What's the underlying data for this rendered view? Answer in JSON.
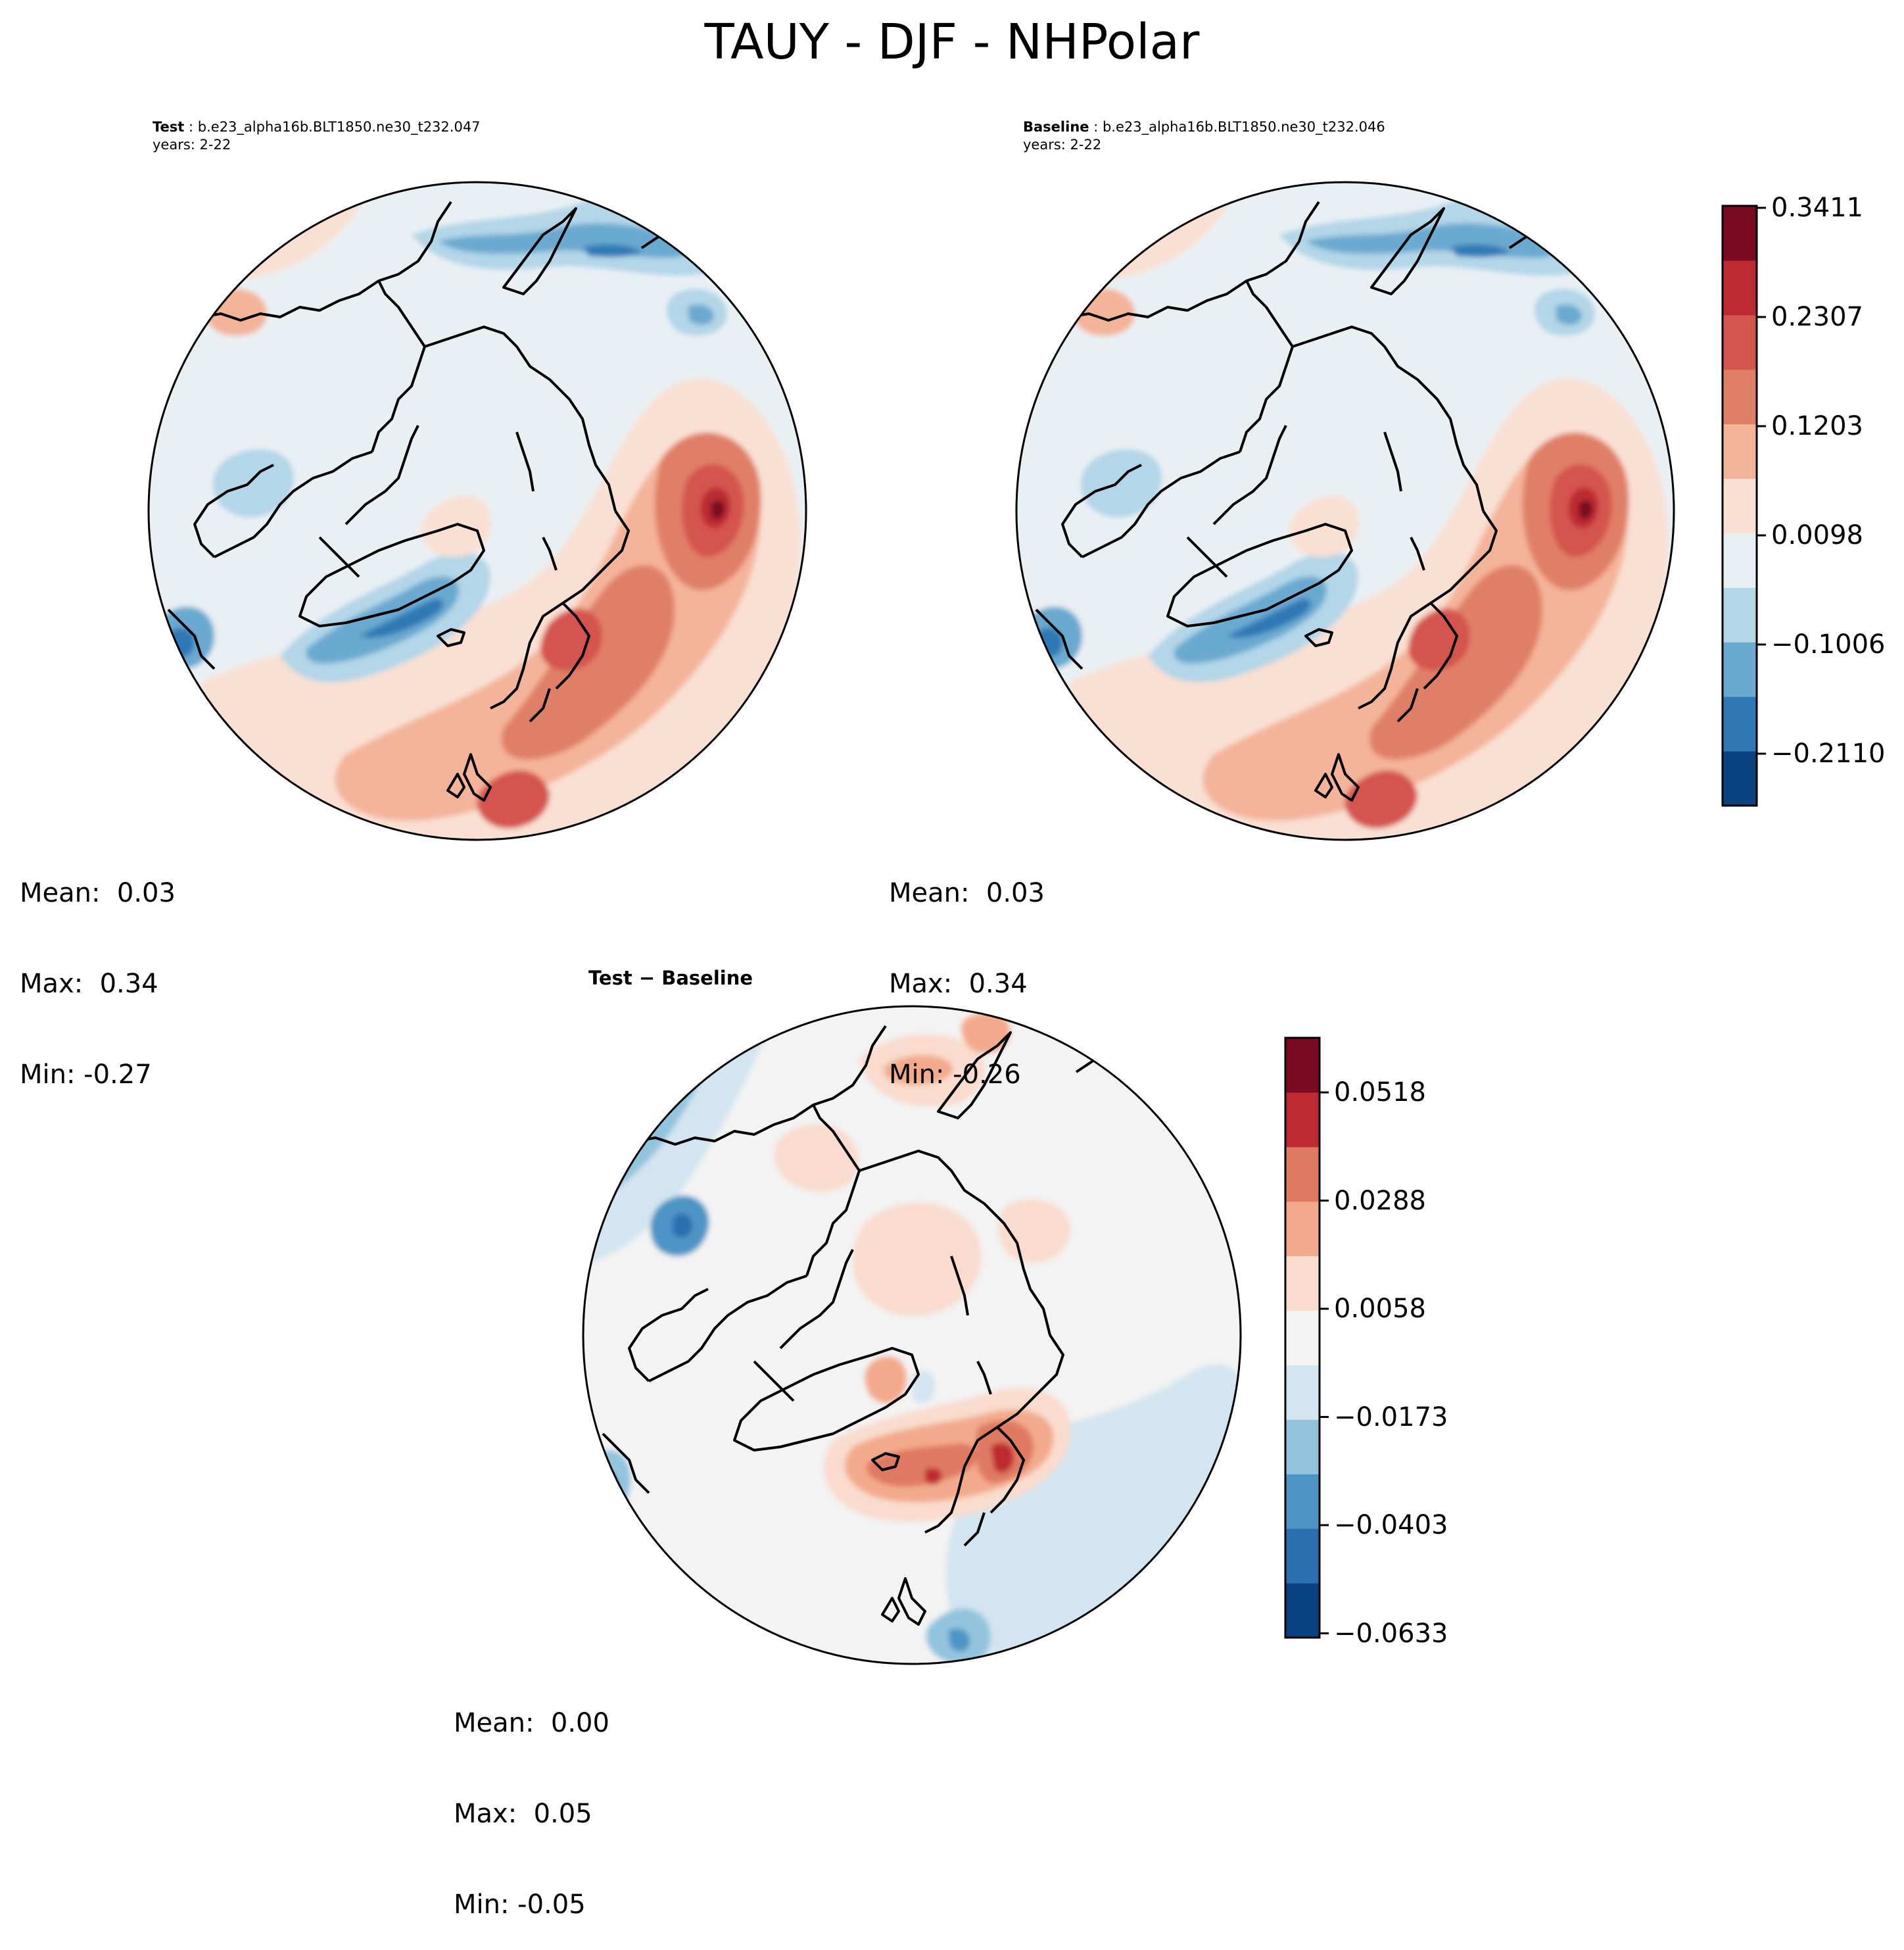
{
  "figure": {
    "title": "TAUY - DJF - NHPolar"
  },
  "panels": {
    "test": {
      "label": "Test",
      "case": "b.e23_alpha16b.BLT1850.ne30_t232.047",
      "years": "years: 2-22",
      "stats": {
        "mean": "Mean:  0.03",
        "max": "Max:  0.34",
        "min": "Min: -0.27"
      }
    },
    "baseline": {
      "label": "Baseline",
      "case": "b.e23_alpha16b.BLT1850.ne30_t232.046",
      "years": "years: 2-22",
      "stats": {
        "mean": "Mean:  0.03",
        "max": "Max:  0.34",
        "min": "Min: -0.26"
      }
    },
    "diff": {
      "title": "Test − Baseline",
      "stats": {
        "mean": "Mean:  0.00",
        "max": "Max:  0.05",
        "min": "Min: -0.05"
      }
    }
  },
  "colorbars": {
    "main": {
      "ticks": [
        "0.3411",
        "0.2307",
        "0.1203",
        "0.0098",
        "−0.1006",
        "−0.2110"
      ],
      "colors": [
        "#0b4382",
        "#2f79b5",
        "#6aa9d0",
        "#b3d6e8",
        "#e9f0f4",
        "#f9e0d3",
        "#f4b49a",
        "#e07f67",
        "#d4554d",
        "#bd2a33",
        "#7a0a21"
      ]
    },
    "diff": {
      "ticks": [
        "0.0518",
        "0.0288",
        "0.0058",
        "−0.0173",
        "−0.0403",
        "−0.0633"
      ],
      "colors": [
        "#0b4382",
        "#2a6faf",
        "#4e95c6",
        "#93c4de",
        "#d3e5f0",
        "#f3f3f3",
        "#f9dccd",
        "#f3aa8c",
        "#df7a62",
        "#bd2a33",
        "#7a0a21"
      ]
    }
  }
}
